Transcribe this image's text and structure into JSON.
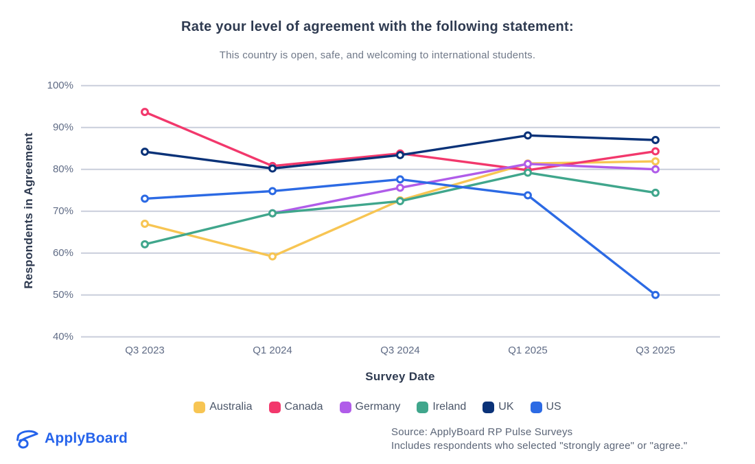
{
  "chart_data": {
    "type": "line",
    "title": "Rate your level of agreement with the following statement:",
    "subtitle": "This country is open, safe, and welcoming to international students.",
    "xlabel": "Survey Date",
    "ylabel": "Respondents in Agreement",
    "categories": [
      "Q3 2023",
      "Q1 2024",
      "Q3 2024",
      "Q1 2025",
      "Q3 2025"
    ],
    "ylim": [
      40,
      100
    ],
    "y_ticks": [
      100,
      90,
      80,
      70,
      60,
      50,
      40
    ],
    "y_tick_suffix": "%",
    "grid": true,
    "legend_position": "bottom",
    "gridline_color": "#c9cedb",
    "series": [
      {
        "name": "Australia",
        "color": "#f7c553",
        "values": [
          67.0,
          59.2,
          72.6,
          81.4,
          81.9
        ]
      },
      {
        "name": "Canada",
        "color": "#f2386c",
        "values": [
          93.7,
          80.8,
          83.8,
          79.8,
          84.3
        ]
      },
      {
        "name": "Germany",
        "color": "#b05ce9",
        "values": [
          null,
          69.5,
          75.6,
          81.3,
          80.0
        ]
      },
      {
        "name": "Ireland",
        "color": "#40a68c",
        "values": [
          62.1,
          69.5,
          72.4,
          79.2,
          74.4
        ]
      },
      {
        "name": "UK",
        "color": "#0a3278",
        "values": [
          84.2,
          80.2,
          83.4,
          88.1,
          87.0
        ]
      },
      {
        "name": "US",
        "color": "#2c6ae4",
        "values": [
          73.0,
          74.8,
          77.6,
          73.8,
          50.0
        ]
      }
    ]
  },
  "footer": {
    "logo_text": "ApplyBoard",
    "logo_color": "#2563eb",
    "source_line1": "Source: ApplyBoard RP Pulse Surveys",
    "source_line2": "Includes respondents who selected \"strongly agree\" or \"agree.\""
  }
}
